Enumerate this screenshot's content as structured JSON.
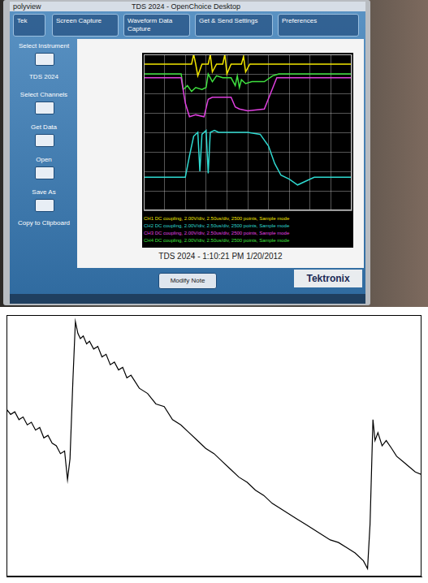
{
  "screenshot": {
    "window_title": "polyview",
    "app_title": "TDS 2024 - OpenChoice Desktop",
    "tek_label": "Tek",
    "tabs": [
      "Screen Capture",
      "Waveform Data Capture",
      "Get & Send Settings",
      "Preferences"
    ],
    "sidebar": [
      "Select Instrument",
      "TDS 2024",
      "Select Channels",
      "Get Data",
      "Open",
      "Save As",
      "Copy to Clipboard"
    ],
    "channel_info": [
      {
        "text": "CH1 DC coupling, 2.00V/div, 2.50us/div, 2500 points, Sample mode",
        "color": "#f2e600"
      },
      {
        "text": "CH2 DC coupling, 2.00V/div, 2.50us/div, 2500 points, Sample mode",
        "color": "#2fd9d0"
      },
      {
        "text": "CH3 DC coupling, 2.00V/div, 2.50us/div, 2500 points, Sample mode",
        "color": "#e040e0"
      },
      {
        "text": "CH4 DC coupling, 2.00V/div, 2.50us/div, 2500 points, Sample mode",
        "color": "#3fe03f"
      }
    ],
    "caption": "TDS 2024 - 1:10:21 PM 1/20/2012",
    "button": "Modify Note",
    "brand": "Tektronix"
  },
  "chart_data": [
    {
      "type": "line",
      "xlim": [
        0,
        10
      ],
      "ylim": [
        0,
        8
      ],
      "xticks": [
        0,
        1,
        2,
        3,
        4,
        5,
        6,
        7,
        8,
        9,
        10
      ],
      "yticks": [
        0,
        1,
        2,
        3,
        4,
        5,
        6,
        7,
        8
      ],
      "grid": true,
      "tick_labels": false,
      "series": [
        {
          "color": "#f2e600",
          "x": [
            0,
            2.3,
            2.4,
            2.5,
            2.6,
            2.8,
            3.1,
            3.2,
            3.3,
            3.5,
            3.8,
            3.9,
            4.0,
            4.2,
            4.7,
            4.8,
            4.9,
            5.1,
            6,
            8,
            10
          ],
          "values": [
            7.5,
            7.5,
            8.0,
            7.5,
            6.9,
            7.5,
            7.5,
            8.0,
            7.1,
            7.5,
            7.5,
            8.0,
            7.0,
            7.5,
            7.5,
            7.9,
            7.1,
            7.5,
            7.5,
            7.5,
            7.5
          ]
        },
        {
          "color": "#2fd9d0",
          "x": [
            0,
            2.0,
            2.2,
            2.4,
            2.6,
            2.7,
            2.8,
            3.0,
            3.1,
            3.2,
            3.4,
            3.6,
            4.0,
            5.0,
            5.6,
            6.0,
            6.3,
            6.6,
            7.0,
            7.4,
            7.8,
            8.2,
            10
          ],
          "values": [
            1.7,
            1.7,
            2.8,
            3.8,
            4.0,
            2.0,
            3.9,
            4.1,
            1.9,
            4.0,
            4.1,
            4.0,
            4.0,
            4.0,
            3.9,
            3.3,
            2.4,
            1.8,
            1.6,
            1.3,
            1.5,
            1.7,
            1.7
          ]
        },
        {
          "color": "#e040e0",
          "x": [
            0,
            1.8,
            2.0,
            2.2,
            2.5,
            2.9,
            3.1,
            3.3,
            3.6,
            4.2,
            4.4,
            4.6,
            5.0,
            5.8,
            6.1,
            6.4,
            7,
            8,
            10
          ],
          "values": [
            6.8,
            6.8,
            5.5,
            4.8,
            4.9,
            4.8,
            5.7,
            5.8,
            5.8,
            5.8,
            5.3,
            5.2,
            5.1,
            5.2,
            6.0,
            6.8,
            6.8,
            6.8,
            6.8
          ]
        },
        {
          "color": "#3fe03f",
          "x": [
            0,
            1.8,
            1.9,
            2.1,
            2.3,
            2.5,
            2.8,
            3.0,
            3.1,
            3.3,
            3.5,
            3.8,
            4.2,
            4.4,
            4.5,
            4.6,
            4.7,
            4.9,
            5.2,
            5.8,
            6.2,
            6.5,
            8,
            10
          ],
          "values": [
            7.0,
            7.0,
            6.2,
            6.4,
            6.1,
            6.3,
            6.2,
            6.3,
            7.0,
            6.6,
            6.9,
            6.8,
            6.8,
            6.4,
            6.9,
            6.3,
            6.7,
            6.5,
            6.6,
            6.6,
            6.9,
            7.0,
            7.0,
            7.0
          ]
        }
      ]
    },
    {
      "type": "line",
      "color": "#000000",
      "xlim": [
        0,
        100
      ],
      "ylim": [
        0,
        100
      ],
      "xticks": [
        0,
        100
      ],
      "yticks": [
        0,
        100
      ],
      "grid": false,
      "tick_labels": false,
      "x": [
        0,
        1,
        2,
        3,
        4,
        5,
        6,
        7,
        8,
        9,
        10,
        11,
        12,
        13,
        14,
        14.7,
        15.3,
        16.0,
        16.6,
        17.2,
        17.8,
        18.5,
        19.3,
        20,
        21,
        22,
        23,
        24,
        25,
        26,
        27,
        28,
        29,
        30,
        32,
        34,
        36,
        38,
        40,
        42,
        44,
        46,
        48,
        50,
        52,
        54,
        56,
        58,
        60,
        62,
        64,
        66,
        68,
        70,
        72,
        74,
        76,
        78,
        80,
        82,
        84,
        86,
        87,
        87.6,
        88.3,
        88.8,
        89.5,
        90.5,
        91.5,
        92.8,
        94,
        95.5,
        97,
        98.5,
        100
      ],
      "values": [
        64,
        62,
        63,
        60,
        61,
        58,
        59,
        56,
        57,
        53,
        54,
        51,
        50,
        47,
        48,
        37,
        45,
        75,
        97.5,
        93,
        91,
        92,
        89,
        90,
        87,
        88,
        84,
        85,
        81,
        82,
        79,
        80,
        76,
        77,
        72,
        70,
        66,
        65,
        60,
        58,
        55,
        52,
        49,
        47,
        44,
        41,
        38,
        36,
        33,
        31,
        28,
        26,
        24,
        22,
        20,
        18,
        16,
        14,
        13,
        11,
        9,
        6,
        3,
        20,
        60,
        52,
        55,
        50,
        52,
        49,
        46,
        44,
        42,
        40,
        39
      ]
    }
  ]
}
